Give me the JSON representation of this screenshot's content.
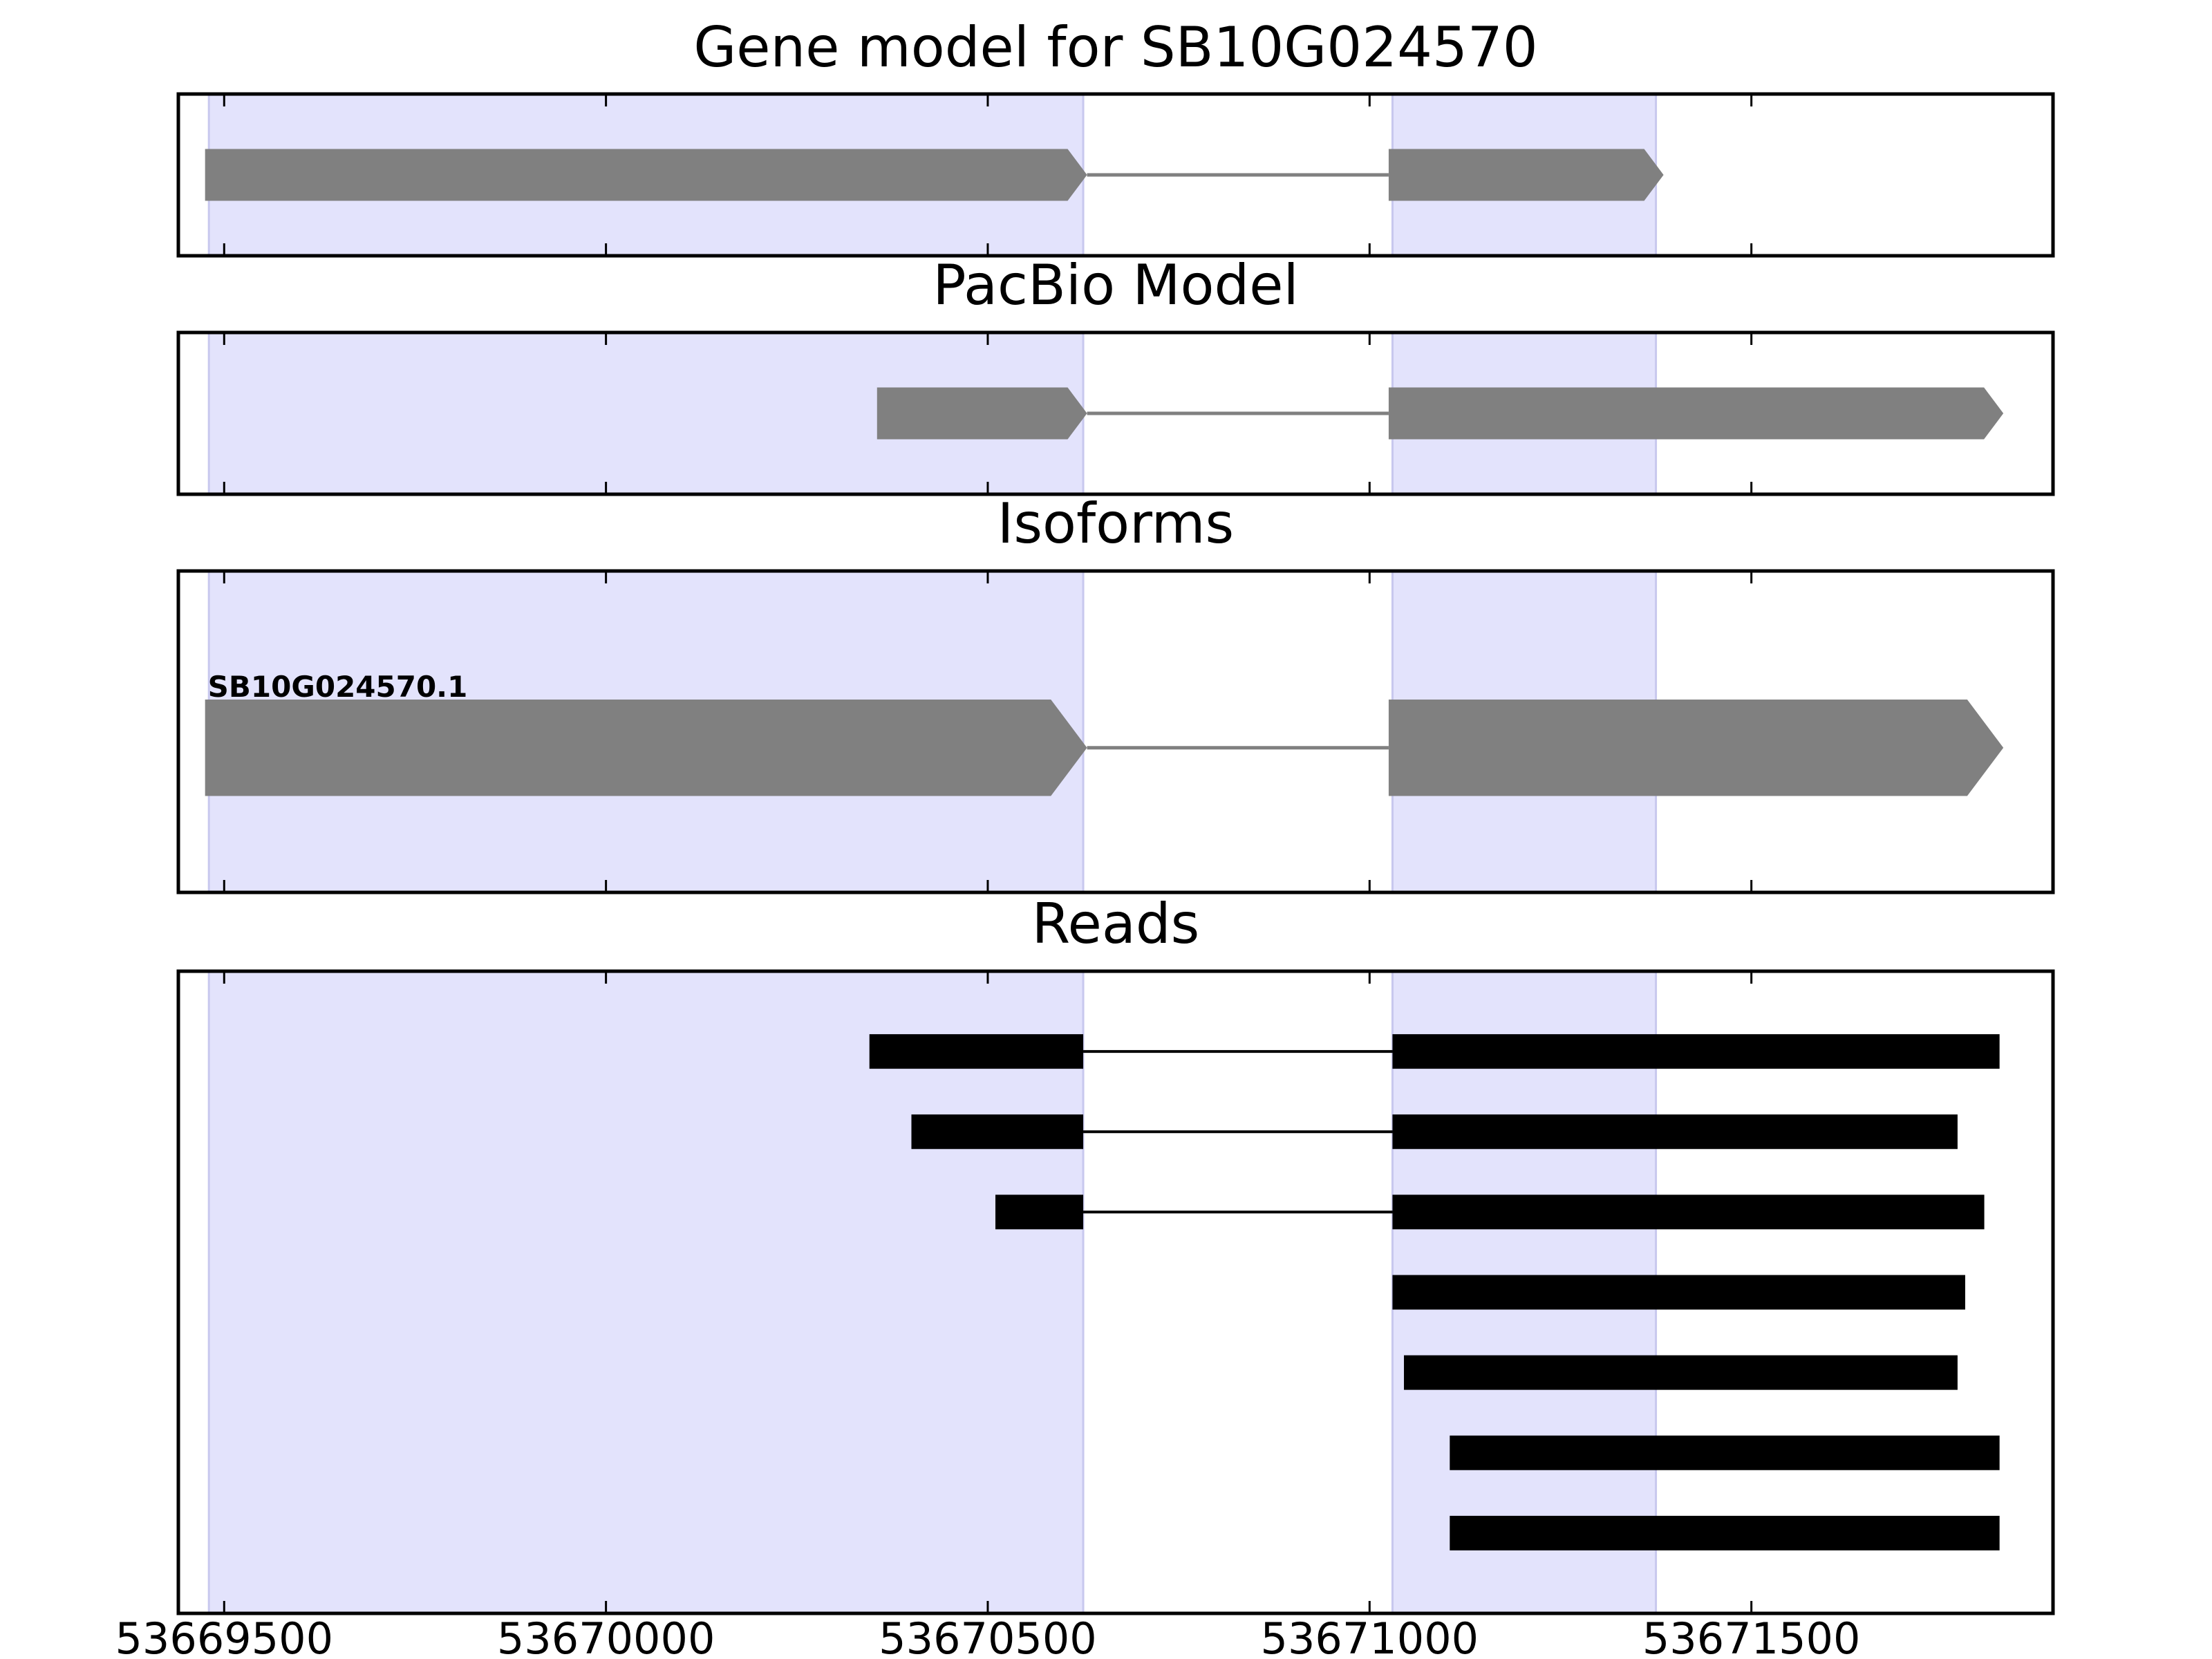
{
  "xaxis": {
    "min": 53669440,
    "max": 53671895,
    "ticks": [
      {
        "value": 53669500,
        "label": "53669500"
      },
      {
        "value": 53670000,
        "label": "53670000"
      },
      {
        "value": 53670500,
        "label": "53670500"
      },
      {
        "value": 53671000,
        "label": "53671000"
      },
      {
        "value": 53671500,
        "label": "53671500"
      }
    ]
  },
  "highlight_regions": [
    {
      "start": 53669480,
      "end": 53670625
    },
    {
      "start": 53671030,
      "end": 53671375
    }
  ],
  "colors": {
    "highlight": "#e3e3fc",
    "exon": "#808080",
    "intron": "#808080",
    "read": "#000000",
    "frame": "#000000"
  },
  "panels": [
    {
      "title": "Gene model for SB10G024570",
      "kind": "model",
      "ylim": [
        0,
        1
      ],
      "models": [
        {
          "label": "",
          "y": 0.5,
          "thickness": 0.32,
          "exons": [
            [
              53669475,
              53670630
            ],
            [
              53671025,
              53671385
            ]
          ]
        }
      ]
    },
    {
      "title": "PacBio Model",
      "kind": "model",
      "ylim": [
        0,
        1
      ],
      "models": [
        {
          "label": "",
          "y": 0.5,
          "thickness": 0.32,
          "exons": [
            [
              53670355,
              53670630
            ],
            [
              53671025,
              53671830
            ]
          ]
        }
      ]
    },
    {
      "title": "Isoforms",
      "kind": "model",
      "ylim": [
        0,
        1
      ],
      "models": [
        {
          "label": "SB10G024570.1",
          "y": 0.45,
          "thickness": 0.3,
          "exons": [
            [
              53669475,
              53670630
            ],
            [
              53671025,
              53671830
            ]
          ]
        }
      ]
    },
    {
      "title": "Reads",
      "kind": "reads",
      "ylim": [
        0,
        8
      ],
      "reads": [
        {
          "y": 7,
          "blocks": [
            [
              53670345,
              53670625
            ],
            [
              53671030,
              53671825
            ]
          ]
        },
        {
          "y": 6,
          "blocks": [
            [
              53670400,
              53670625
            ],
            [
              53671030,
              53671770
            ]
          ]
        },
        {
          "y": 5,
          "blocks": [
            [
              53670510,
              53670625
            ],
            [
              53671030,
              53671805
            ]
          ]
        },
        {
          "y": 4,
          "blocks": [
            [
              53671030,
              53671780
            ]
          ]
        },
        {
          "y": 3,
          "blocks": [
            [
              53671045,
              53671770
            ]
          ]
        },
        {
          "y": 2,
          "blocks": [
            [
              53671105,
              53671825
            ]
          ]
        },
        {
          "y": 1,
          "blocks": [
            [
              53671105,
              53671825
            ]
          ]
        }
      ]
    }
  ]
}
